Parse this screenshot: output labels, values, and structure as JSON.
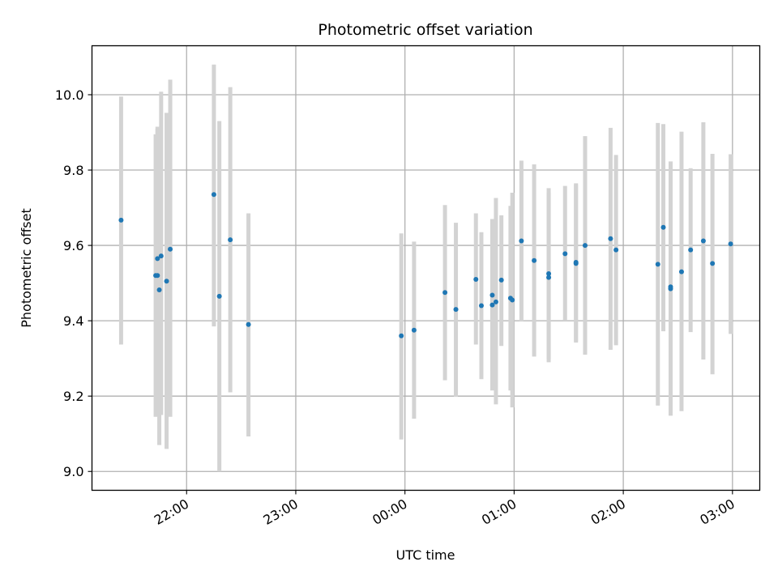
{
  "chart_data": {
    "type": "scatter",
    "title": "Photometric offset variation",
    "xlabel": "UTC time",
    "ylabel": "Photometric offset",
    "x_unit": "UTC time (HH:MM), night starting 21:00",
    "xlim": [
      "21:08",
      "03:15"
    ],
    "ylim": [
      8.95,
      10.13
    ],
    "xticks": [
      "22:00",
      "23:00",
      "00:00",
      "01:00",
      "02:00",
      "03:00"
    ],
    "yticks": [
      9.0,
      9.2,
      9.4,
      9.6,
      9.8,
      10.0
    ],
    "ytick_labels": [
      "9.0",
      "9.2",
      "9.4",
      "9.6",
      "9.8",
      "10.0"
    ],
    "grid": true,
    "legend": "none",
    "colors": {
      "points": "#1f77b4",
      "errorbars": "#d3d3d3"
    },
    "series": [
      {
        "points": [
          {
            "t": "21:24",
            "y": 9.667,
            "lo": 9.337,
            "hi": 9.995
          },
          {
            "t": "21:43",
            "y": 9.52,
            "lo": 9.145,
            "hi": 9.895
          },
          {
            "t": "21:44",
            "y": 9.565,
            "lo": 9.16,
            "hi": 9.91
          },
          {
            "t": "21:44",
            "y": 9.52,
            "lo": 9.17,
            "hi": 9.915
          },
          {
            "t": "21:45",
            "y": 9.482,
            "lo": 9.07,
            "hi": 9.88
          },
          {
            "t": "21:46",
            "y": 9.572,
            "lo": 9.15,
            "hi": 10.008
          },
          {
            "t": "21:49",
            "y": 9.505,
            "lo": 9.06,
            "hi": 9.952
          },
          {
            "t": "21:51",
            "y": 9.59,
            "lo": 9.145,
            "hi": 10.04
          },
          {
            "t": "22:15",
            "y": 9.735,
            "lo": 9.385,
            "hi": 10.08
          },
          {
            "t": "22:18",
            "y": 9.465,
            "lo": 9.0,
            "hi": 9.93
          },
          {
            "t": "22:24",
            "y": 9.615,
            "lo": 9.21,
            "hi": 10.02
          },
          {
            "t": "22:34",
            "y": 9.39,
            "lo": 9.093,
            "hi": 9.685
          },
          {
            "t": "23:58",
            "y": 9.36,
            "lo": 9.085,
            "hi": 9.632
          },
          {
            "t": "00:05",
            "y": 9.375,
            "lo": 9.14,
            "hi": 9.61
          },
          {
            "t": "00:22",
            "y": 9.475,
            "lo": 9.242,
            "hi": 9.707
          },
          {
            "t": "00:28",
            "y": 9.43,
            "lo": 9.198,
            "hi": 9.66
          },
          {
            "t": "00:39",
            "y": 9.51,
            "lo": 9.337,
            "hi": 9.685
          },
          {
            "t": "00:42",
            "y": 9.44,
            "lo": 9.245,
            "hi": 9.635
          },
          {
            "t": "00:48",
            "y": 9.468,
            "lo": 9.267,
            "hi": 9.668
          },
          {
            "t": "00:48",
            "y": 9.442,
            "lo": 9.215,
            "hi": 9.67
          },
          {
            "t": "00:50",
            "y": 9.45,
            "lo": 9.178,
            "hi": 9.726
          },
          {
            "t": "00:53",
            "y": 9.508,
            "lo": 9.333,
            "hi": 9.68
          },
          {
            "t": "00:58",
            "y": 9.46,
            "lo": 9.215,
            "hi": 9.705
          },
          {
            "t": "00:59",
            "y": 9.455,
            "lo": 9.17,
            "hi": 9.74
          },
          {
            "t": "01:04",
            "y": 9.612,
            "lo": 9.398,
            "hi": 9.825
          },
          {
            "t": "01:11",
            "y": 9.56,
            "lo": 9.305,
            "hi": 9.815
          },
          {
            "t": "01:19",
            "y": 9.525,
            "lo": 9.298,
            "hi": 9.752
          },
          {
            "t": "01:19",
            "y": 9.515,
            "lo": 9.29,
            "hi": 9.74
          },
          {
            "t": "01:28",
            "y": 9.578,
            "lo": 9.4,
            "hi": 9.758
          },
          {
            "t": "01:34",
            "y": 9.555,
            "lo": 9.345,
            "hi": 9.765
          },
          {
            "t": "01:34",
            "y": 9.552,
            "lo": 9.342,
            "hi": 9.762
          },
          {
            "t": "01:39",
            "y": 9.6,
            "lo": 9.31,
            "hi": 9.89
          },
          {
            "t": "01:53",
            "y": 9.618,
            "lo": 9.323,
            "hi": 9.912
          },
          {
            "t": "01:56",
            "y": 9.588,
            "lo": 9.335,
            "hi": 9.84
          },
          {
            "t": "02:19",
            "y": 9.55,
            "lo": 9.175,
            "hi": 9.925
          },
          {
            "t": "02:22",
            "y": 9.648,
            "lo": 9.372,
            "hi": 9.922
          },
          {
            "t": "02:26",
            "y": 9.49,
            "lo": 9.155,
            "hi": 9.823
          },
          {
            "t": "02:26",
            "y": 9.485,
            "lo": 9.148,
            "hi": 9.82
          },
          {
            "t": "02:32",
            "y": 9.53,
            "lo": 9.16,
            "hi": 9.902
          },
          {
            "t": "02:37",
            "y": 9.588,
            "lo": 9.37,
            "hi": 9.805
          },
          {
            "t": "02:44",
            "y": 9.612,
            "lo": 9.297,
            "hi": 9.927
          },
          {
            "t": "02:49",
            "y": 9.552,
            "lo": 9.258,
            "hi": 9.843
          },
          {
            "t": "02:59",
            "y": 9.604,
            "lo": 9.365,
            "hi": 9.842
          }
        ]
      }
    ]
  }
}
